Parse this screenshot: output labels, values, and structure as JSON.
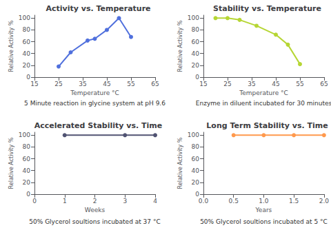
{
  "chart_data": [
    {
      "type": "line",
      "title": "Activity vs. Temperature",
      "x_label": "Temperature °C",
      "y_label": "Relative Activity %",
      "x": [
        25,
        30,
        37,
        40,
        45,
        50,
        55
      ],
      "values": [
        18,
        42,
        62,
        65,
        80,
        100,
        68
      ],
      "xlim": [
        15,
        65
      ],
      "ylim": [
        0,
        105
      ],
      "xticks": [
        15,
        25,
        35,
        45,
        55,
        65
      ],
      "yticks": [
        0,
        20,
        40,
        60,
        80,
        100
      ],
      "marker": "circle",
      "grid": false,
      "caption": "5 Minute reaction in glycine system at pH 9.6"
    },
    {
      "type": "line",
      "title": "Stability vs. Temperature",
      "x_label": "Temperature °C",
      "y_label": "Relative Activity %",
      "x": [
        20,
        25,
        30,
        37,
        45,
        50,
        55
      ],
      "values": [
        100,
        100,
        97,
        87,
        72,
        55,
        22
      ],
      "xlim": [
        15,
        65
      ],
      "ylim": [
        0,
        105
      ],
      "xticks": [
        15,
        25,
        35,
        45,
        55,
        65
      ],
      "yticks": [
        0,
        20,
        40,
        60,
        80,
        100
      ],
      "marker": "circle",
      "grid": false,
      "caption": "Enzyme in diluent incubated for 30 minutes"
    },
    {
      "type": "line",
      "title": "Accelerated Stability vs. Time",
      "x_label": "Weeks",
      "y_label": "Relative Activity %",
      "x": [
        1,
        3,
        4
      ],
      "values": [
        100,
        100,
        100
      ],
      "xlim": [
        0,
        4
      ],
      "ylim": [
        0,
        105
      ],
      "xticks": [
        0,
        1,
        2,
        3,
        4
      ],
      "yticks": [
        0,
        20,
        40,
        60,
        80,
        100
      ],
      "marker": "circle",
      "grid": false,
      "caption": "50% Glycerol soultions incubated at 37 °C"
    },
    {
      "type": "line",
      "title": "Long Term Stability vs. Time",
      "x_label": "Years",
      "y_label": "Relative Activity %",
      "x": [
        0.5,
        1.0,
        1.5,
        2.0
      ],
      "values": [
        100,
        100,
        100,
        100
      ],
      "xlim": [
        0,
        2
      ],
      "ylim": [
        0,
        105
      ],
      "xticks": [
        {
          "value": 0,
          "label": "0.0"
        },
        {
          "value": 0.5,
          "label": "0.5"
        },
        {
          "value": 1.0,
          "label": "1.0"
        },
        {
          "value": 1.5,
          "label": "1.5"
        },
        {
          "value": 2.0,
          "label": "2.0"
        }
      ],
      "yticks": [
        0,
        20,
        40,
        60,
        80,
        100
      ],
      "marker": "circle",
      "grid": false,
      "caption": "50% Glycerol soultions incubated at 5 °C"
    }
  ]
}
